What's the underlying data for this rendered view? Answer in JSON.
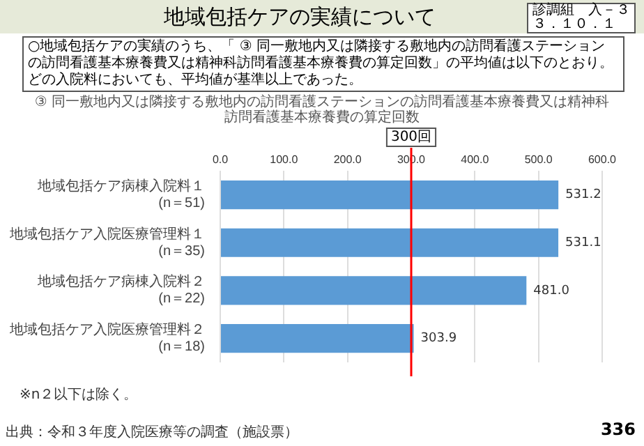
{
  "chart_data": {
    "type": "bar",
    "orientation": "horizontal",
    "title": "地域包括ケアの実績について",
    "subtitle": "○地域包括ケアの実績のうち、「 ③ 同一敷地内又は隣接する敷地内の訪問看護ステーションの訪問看護基本療養費又は精神科訪問看護基本療養費の算定回数」の平均値は以下のとおり。どの入院料においても、平均値が基準以上であった。",
    "annotations": [
      "診調組　入－３",
      "３．１０．１",
      "③ 同一敷地内又は隣接する敷地内の訪問看護ステーションの訪問看護基本療養費又は精神科訪問看護基本療養費の算定回数",
      "※n２以下は除く。",
      "出典：令和３年度入院医療等の調査（施設票）",
      "336"
    ],
    "categories": [
      "地域包括ケア病棟入院料１(n＝51)",
      "地域包括ケア入院医療管理料１(n＝35)",
      "地域包括ケア病棟入院料２(n＝22)",
      "地域包括ケア入院医療管理料２(n＝18)"
    ],
    "values": [
      531.2,
      531.1,
      481,
      303.9
    ],
    "value_labels": [
      "531.2",
      "531.1",
      "481.0",
      "303.9"
    ],
    "color": "#5b9bd5",
    "xlim": [
      0,
      600
    ],
    "xticks": [
      {
        "value": 0,
        "label": "0.0"
      },
      {
        "value": 100,
        "label": "100.0"
      },
      {
        "value": 200,
        "label": "200.0"
      },
      {
        "value": 300,
        "label": "300.0"
      },
      {
        "value": 400,
        "label": "400.0"
      },
      {
        "value": 500,
        "label": "500.0"
      },
      {
        "value": 600,
        "label": "600.0"
      }
    ],
    "grid": "x",
    "legend": false,
    "ref_lines": [
      {
        "axis": "x",
        "value": 300,
        "label": "300回",
        "color": "#ff0000"
      }
    ]
  }
}
